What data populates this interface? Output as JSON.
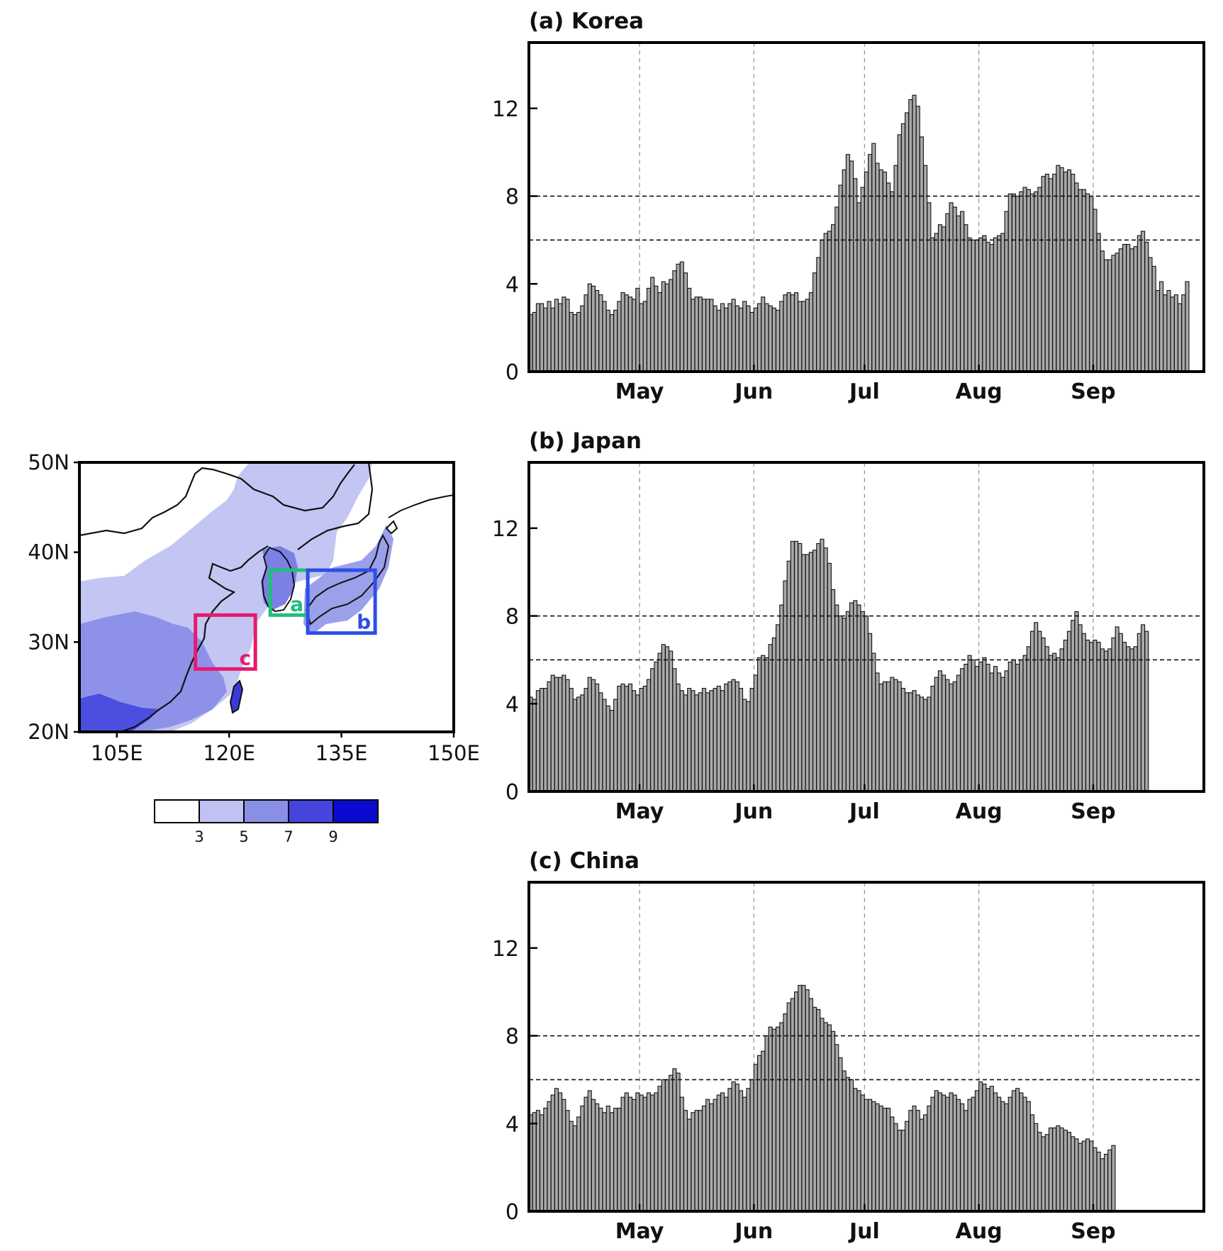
{
  "chart_data": [
    {
      "type": "bar",
      "panel": "a",
      "title": "(a)  Korea",
      "months": [
        "May",
        "Jun",
        "Jul",
        "Aug",
        "Sep"
      ],
      "yticks": [
        "0",
        "4",
        "8",
        "12"
      ],
      "ylim": [
        0,
        15
      ],
      "reference_lines": [
        6,
        8
      ],
      "grid": "dashed vertical at month starts",
      "x_start": "Apr 1",
      "series": [
        {
          "values": [
            2.6,
            2.7,
            3.1,
            3.1,
            2.9,
            3.2,
            2.9,
            3.3,
            3.1,
            3.4,
            3.3,
            2.7,
            2.6,
            2.7,
            3.0,
            3.5,
            4.0,
            3.9,
            3.7,
            3.5,
            3.2,
            2.8,
            2.6,
            2.8,
            3.2,
            3.6,
            3.5,
            3.4,
            3.3,
            3.8,
            3.1,
            3.2,
            3.8,
            4.3,
            3.9,
            3.6,
            4.1,
            4.0,
            4.2,
            4.6,
            4.9,
            5.0,
            4.5,
            3.8,
            3.3,
            3.4,
            3.4,
            3.3,
            3.3,
            3.3,
            3.0,
            2.8,
            3.1,
            2.9,
            3.1,
            3.3,
            3.0,
            2.9,
            3.2,
            3.0,
            2.7,
            2.9,
            3.1,
            3.4,
            3.1,
            3.0,
            2.9,
            2.8,
            3.2,
            3.5,
            3.6,
            3.5,
            3.6,
            3.2,
            3.2,
            3.3,
            3.6,
            4.5,
            5.2,
            6.0,
            6.3,
            6.4,
            6.7,
            7.5,
            8.5,
            9.2,
            9.9,
            9.6,
            8.8,
            7.7,
            8.4,
            9.1,
            9.9,
            10.4,
            9.5,
            9.2,
            9.1,
            8.6,
            8.2,
            9.4,
            10.8,
            11.3,
            11.8,
            12.4,
            12.6,
            12.1,
            10.7,
            9.4,
            7.7,
            6.1,
            6.3,
            6.7,
            6.6,
            7.2,
            7.7,
            7.5,
            7.1,
            7.3,
            6.7,
            6.1,
            6.0,
            6.0,
            6.1,
            6.2,
            5.9,
            5.8,
            6.1,
            6.2,
            6.3,
            7.3,
            8.1,
            8.1,
            8.0,
            8.2,
            8.4,
            8.3,
            8.1,
            8.2,
            8.4,
            8.9,
            9.0,
            8.8,
            9.0,
            9.4,
            9.3,
            9.1,
            9.2,
            9.0,
            8.6,
            8.3,
            8.3,
            8.1,
            8.0,
            7.4,
            6.3,
            5.5,
            5.1,
            5.1,
            5.3,
            5.4,
            5.6,
            5.8,
            5.8,
            5.6,
            5.7,
            6.2,
            6.4,
            5.9,
            5.2,
            4.8,
            3.7,
            4.1,
            3.5,
            3.7,
            3.4,
            3.5,
            3.1,
            3.5,
            4.1
          ]
        }
      ]
    },
    {
      "type": "bar",
      "panel": "b",
      "title": "(b)  Japan",
      "months": [
        "May",
        "Jun",
        "Jul",
        "Aug",
        "Sep"
      ],
      "yticks": [
        "0",
        "4",
        "8",
        "12"
      ],
      "ylim": [
        0,
        15
      ],
      "reference_lines": [
        6,
        8
      ],
      "grid": "dashed vertical at month starts",
      "x_start": "Apr 1",
      "series": [
        {
          "values": [
            4.3,
            4.2,
            4.6,
            4.7,
            4.7,
            5.0,
            5.3,
            5.2,
            5.2,
            5.3,
            5.1,
            4.7,
            4.2,
            4.3,
            4.4,
            4.7,
            5.2,
            5.1,
            4.9,
            4.5,
            4.2,
            3.9,
            3.7,
            4.2,
            4.8,
            4.9,
            4.8,
            4.9,
            4.6,
            4.4,
            4.7,
            4.8,
            5.1,
            5.6,
            5.9,
            6.3,
            6.7,
            6.6,
            6.4,
            5.6,
            4.9,
            4.6,
            4.4,
            4.7,
            4.6,
            4.4,
            4.5,
            4.7,
            4.5,
            4.6,
            4.7,
            4.8,
            4.6,
            4.9,
            5.0,
            5.1,
            5.0,
            4.7,
            4.2,
            4.1,
            4.7,
            5.3,
            6.1,
            6.2,
            6.1,
            6.7,
            7.0,
            7.6,
            8.5,
            9.6,
            10.5,
            11.4,
            11.4,
            11.3,
            10.8,
            10.8,
            10.9,
            11.0,
            11.3,
            11.5,
            11.1,
            10.4,
            9.2,
            8.5,
            8.0,
            7.9,
            8.2,
            8.6,
            8.7,
            8.5,
            8.2,
            8.0,
            7.2,
            6.3,
            5.4,
            4.9,
            5.0,
            5.0,
            5.2,
            5.1,
            5.0,
            4.7,
            4.5,
            4.5,
            4.6,
            4.4,
            4.3,
            4.2,
            4.3,
            4.8,
            5.2,
            5.5,
            5.3,
            5.1,
            4.9,
            5.0,
            5.3,
            5.6,
            5.8,
            6.2,
            6.0,
            5.7,
            5.9,
            6.1,
            5.8,
            5.4,
            5.7,
            5.4,
            5.2,
            5.5,
            5.9,
            6.0,
            5.8,
            6.0,
            6.2,
            6.6,
            7.3,
            7.7,
            7.3,
            7.0,
            6.6,
            6.2,
            6.3,
            6.1,
            6.5,
            6.9,
            7.3,
            7.8,
            8.2,
            7.6,
            7.2,
            6.9,
            6.8,
            6.9,
            6.8,
            6.5,
            6.4,
            6.5,
            7.0,
            7.5,
            7.2,
            6.8,
            6.6,
            6.5,
            6.6,
            7.2,
            7.6,
            7.3
          ]
        }
      ]
    },
    {
      "type": "bar",
      "panel": "c",
      "title": "(c)  China",
      "months": [
        "May",
        "Jun",
        "Jul",
        "Aug",
        "Sep"
      ],
      "yticks": [
        "0",
        "4",
        "8",
        "12"
      ],
      "ylim": [
        0,
        15
      ],
      "reference_lines": [
        6,
        8
      ],
      "grid": "dashed vertical at month starts",
      "x_start": "Apr 1",
      "series": [
        {
          "values": [
            4.4,
            4.5,
            4.6,
            4.4,
            4.7,
            5.0,
            5.3,
            5.6,
            5.4,
            5.1,
            4.6,
            4.1,
            3.9,
            4.3,
            4.8,
            5.2,
            5.5,
            5.1,
            4.9,
            4.7,
            4.5,
            4.8,
            4.5,
            4.7,
            4.7,
            5.2,
            5.4,
            5.2,
            5.1,
            5.4,
            5.3,
            5.2,
            5.4,
            5.3,
            5.4,
            5.7,
            6.0,
            6.0,
            6.2,
            6.5,
            6.3,
            5.2,
            4.6,
            4.2,
            4.5,
            4.6,
            4.6,
            4.8,
            5.1,
            4.9,
            5.1,
            5.3,
            5.4,
            5.2,
            5.6,
            5.9,
            5.8,
            5.5,
            5.2,
            5.6,
            6.0,
            6.7,
            7.1,
            7.3,
            8.0,
            8.4,
            8.3,
            8.4,
            8.6,
            9.0,
            9.5,
            9.7,
            10.0,
            10.3,
            10.3,
            10.1,
            9.7,
            9.3,
            9.2,
            8.8,
            8.6,
            8.5,
            8.2,
            7.6,
            7.0,
            6.4,
            6.1,
            6.0,
            5.6,
            5.5,
            5.3,
            5.1,
            5.1,
            5.0,
            4.9,
            4.8,
            4.7,
            4.7,
            4.3,
            4.0,
            3.7,
            3.7,
            4.1,
            4.6,
            4.8,
            4.6,
            4.2,
            4.4,
            4.8,
            5.2,
            5.5,
            5.4,
            5.3,
            5.2,
            5.4,
            5.3,
            5.1,
            4.9,
            4.6,
            5.1,
            5.2,
            5.5,
            5.9,
            5.8,
            5.6,
            5.7,
            5.4,
            5.2,
            5.0,
            4.9,
            5.2,
            5.5,
            5.6,
            5.4,
            5.2,
            5.0,
            4.4,
            4.0,
            3.6,
            3.4,
            3.5,
            3.8,
            3.8,
            3.9,
            3.8,
            3.7,
            3.6,
            3.4,
            3.3,
            3.1,
            3.2,
            3.3,
            3.2,
            2.9,
            2.7,
            2.4,
            2.6,
            2.8,
            3.0
          ]
        }
      ]
    }
  ],
  "map": {
    "lat_labels": [
      "50N",
      "40N",
      "30N",
      "20N"
    ],
    "lon_labels": [
      "105E",
      "120E",
      "135E",
      "150E"
    ],
    "boxes": [
      {
        "label": "a",
        "color": "#1fbf7a"
      },
      {
        "label": "b",
        "color": "#2b4fe6"
      },
      {
        "label": "c",
        "color": "#e8196e"
      }
    ],
    "colorbar": {
      "ticks": [
        "3",
        "5",
        "7",
        "9"
      ],
      "colors": [
        "#ffffff",
        "#bfc2f2",
        "#8a8fe6",
        "#4545dd",
        "#0a0ad0"
      ]
    }
  }
}
